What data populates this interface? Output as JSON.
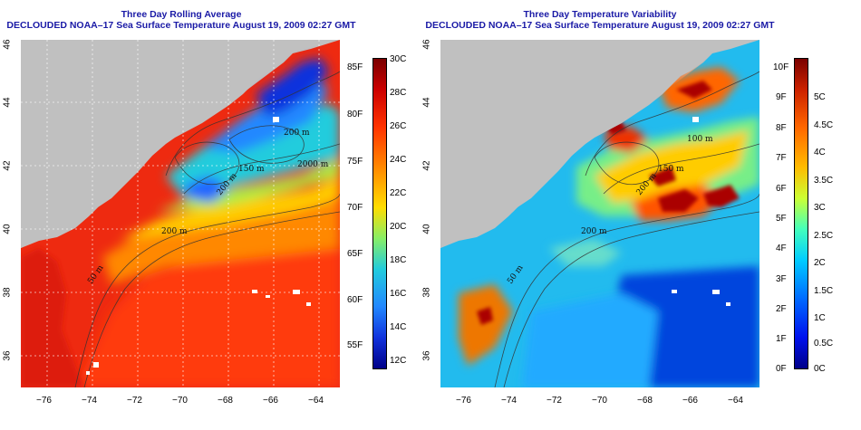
{
  "left_panel": {
    "title_line1": "Three Day Rolling Average",
    "title_line2": "DECLOUDED NOAA–17 Sea Surface Temperature August 19, 2009 02:27 GMT",
    "contour_labels": [
      "2000 m",
      "200 m",
      "200 m",
      "50 m",
      "150 m",
      "200 m"
    ],
    "colorbar_f": [
      "85F",
      "80F",
      "75F",
      "70F",
      "65F",
      "60F",
      "55F"
    ],
    "colorbar_c": [
      "30C",
      "28C",
      "26C",
      "24C",
      "22C",
      "20C",
      "18C",
      "16C",
      "14C",
      "12C"
    ]
  },
  "right_panel": {
    "title_line1": "Three Day Temperature Variability",
    "title_line2": "DECLOUDED NOAA–17 Sea Surface Temperature August 19, 2009 02:27 GMT",
    "contour_labels": [
      "150 m",
      "100 m",
      "200 m",
      "200 m",
      "50 m"
    ],
    "colorbar_f": [
      "10F",
      "9F",
      "8F",
      "7F",
      "6F",
      "5F",
      "4F",
      "3F",
      "2F",
      "1F",
      "0F"
    ],
    "colorbar_c": [
      "5C",
      "4.5C",
      "4C",
      "3.5C",
      "3C",
      "2.5C",
      "2C",
      "1.5C",
      "1C",
      "0.5C",
      "0C"
    ]
  },
  "x_ticks": [
    "−76",
    "−74",
    "−72",
    "−70",
    "−68",
    "−66",
    "−64"
  ],
  "y_ticks": [
    "36",
    "38",
    "40",
    "42",
    "44",
    "46"
  ],
  "colors": {
    "land": "#c0c0c0",
    "title": "#1a1aa6",
    "sst_scale": [
      "#7a0000",
      "#cc0000",
      "#ff3300",
      "#ff8800",
      "#ffdd00",
      "#88ee66",
      "#22ccdd",
      "#2288ff",
      "#1133dd",
      "#000088"
    ],
    "var_scale": [
      "#7a0000",
      "#cc2200",
      "#ff6600",
      "#ffbb00",
      "#ccff33",
      "#44ffbb",
      "#00ccff",
      "#0066ff",
      "#0011ee",
      "#000088"
    ]
  }
}
